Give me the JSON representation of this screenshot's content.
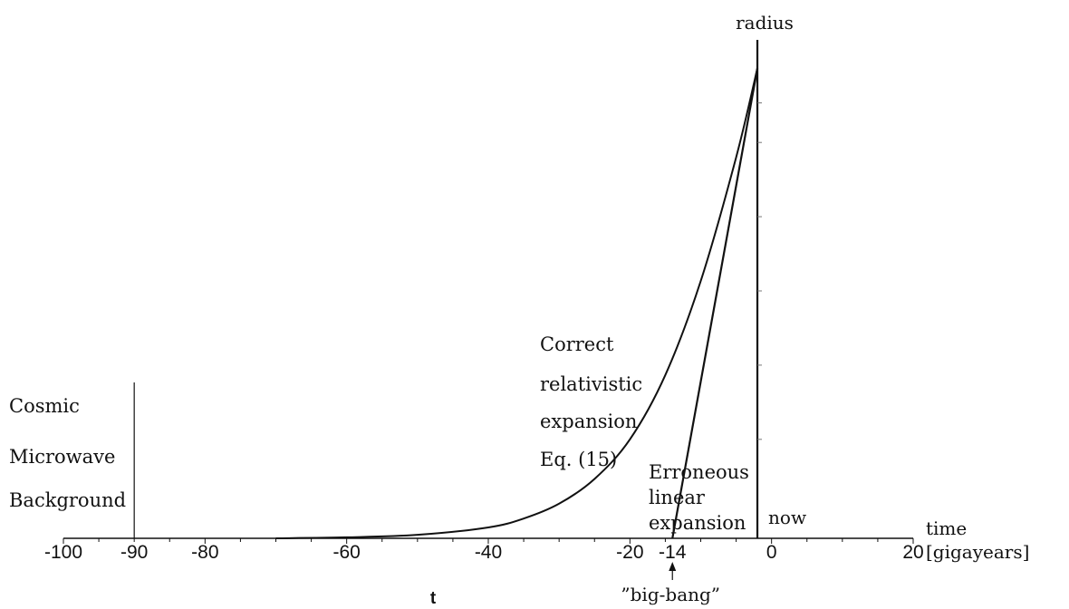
{
  "chart_data": {
    "type": "line",
    "xlabel": "t",
    "x_axis_unit_label": [
      "time",
      "[gigayears]"
    ],
    "ylabel": "radius",
    "xlim": [
      -100,
      20
    ],
    "x_ticks": [
      {
        "value": -100,
        "label": "-100"
      },
      {
        "value": -80,
        "label": "-80"
      },
      {
        "value": -60,
        "label": "-60"
      },
      {
        "value": -40,
        "label": "-40"
      },
      {
        "value": -20,
        "label": "-20"
      },
      {
        "value": 0,
        "label": "0"
      },
      {
        "value": 20,
        "label": "20"
      }
    ],
    "extra_tick_labels": [
      {
        "value": -90,
        "label": "-90"
      },
      {
        "value": -14,
        "label": "-14"
      }
    ],
    "series": [
      {
        "id": "relativistic",
        "x": [
          -70,
          -60,
          -50,
          -40,
          -35,
          -30,
          -25,
          -20,
          -15,
          -10,
          -5,
          -2
        ],
        "y": [
          0.0,
          0.002,
          0.007,
          0.022,
          0.04,
          0.07,
          0.12,
          0.2,
          0.33,
          0.52,
          0.77,
          0.95
        ]
      },
      {
        "id": "linear",
        "x": [
          -14,
          -2
        ],
        "y": [
          0.0,
          0.95
        ]
      }
    ],
    "annotations": {
      "cmb": {
        "value": -90,
        "lines": [
          "Cosmic",
          "Microwave",
          "Background"
        ]
      },
      "relativistic": {
        "lines": [
          "Correct",
          "relativistic",
          "expansion",
          "Eq. (15)"
        ]
      },
      "linear": {
        "lines": [
          "Erroneous",
          "linear",
          "expansion"
        ]
      },
      "now": {
        "value": -2,
        "text": "now"
      },
      "big_bang": {
        "value": -14,
        "text": "”big-bang”"
      }
    },
    "grid": false,
    "legend": "none"
  }
}
